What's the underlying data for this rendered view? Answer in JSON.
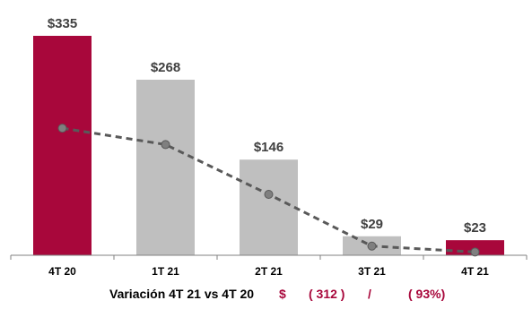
{
  "chart_data": {
    "type": "bar",
    "categories": [
      "4T 20",
      "1T 21",
      "2T 21",
      "3T 21",
      "4T 21"
    ],
    "values": [
      335,
      268,
      146,
      29,
      23
    ],
    "value_labels": [
      "$335",
      "$268",
      "$146",
      "$29",
      "$23"
    ],
    "highlight": [
      true,
      false,
      false,
      false,
      true
    ],
    "trend_line": [
      194,
      169,
      93,
      14,
      5
    ],
    "ylim": [
      0,
      345
    ],
    "grid": false,
    "legend": "none"
  },
  "colors": {
    "highlight_bar": "#A8073B",
    "normal_bar": "#BFBFBF",
    "trend_line": "#595959",
    "trend_marker": "#7F7F7F",
    "label_text": "#404040",
    "footer_accent": "#A8073B",
    "axis": "#808080"
  },
  "footer": {
    "label": "Variación 4T 21 vs 4T 20",
    "currency": "$",
    "amount": "( 312 )",
    "separator": "/",
    "percent": "( 93%)"
  }
}
